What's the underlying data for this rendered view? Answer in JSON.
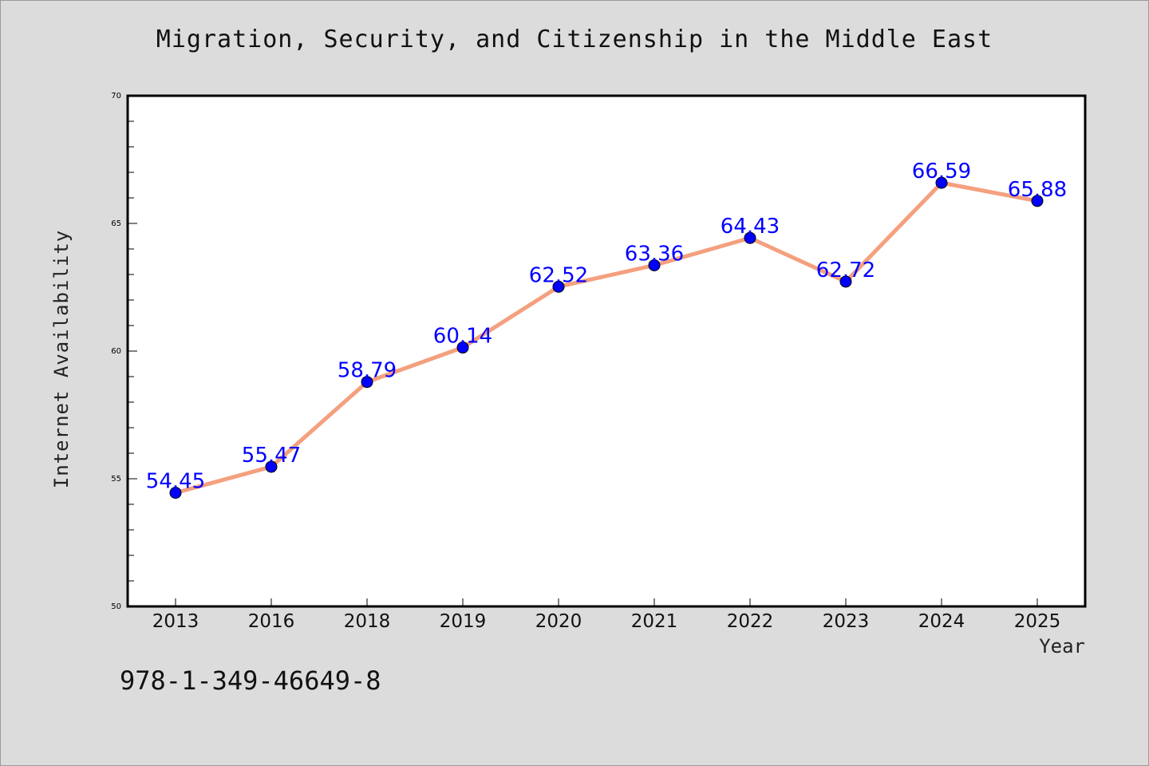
{
  "title": "Migration, Security, and Citizenship in the Middle East",
  "isbn": "978-1-349-46649-8",
  "chart_data": {
    "type": "line",
    "title": "Migration, Security, and Citizenship in the Middle East",
    "xlabel": "Year",
    "ylabel": "Internet Availability",
    "categories": [
      "2013",
      "2016",
      "2018",
      "2019",
      "2020",
      "2021",
      "2022",
      "2023",
      "2024",
      "2025"
    ],
    "series": [
      {
        "values": [
          54.45,
          55.47,
          58.79,
          60.14,
          62.52,
          63.36,
          64.43,
          62.72,
          66.59,
          65.88
        ]
      }
    ],
    "data_labels": [
      "54.45",
      "55.47",
      "58.79",
      "60.14",
      "62.52",
      "63.36",
      "64.43",
      "62.72",
      "66.59",
      "65.88"
    ],
    "ylim": [
      50,
      70
    ],
    "yticks": [
      "50",
      "55",
      "60",
      "65",
      "70"
    ],
    "grid": false,
    "legend": "none",
    "colors": {
      "line": "#f4a07e",
      "marker": "#0000ff",
      "label": "#0000ff",
      "background": "#dcdcdc",
      "plot_background": "#ffffff"
    }
  }
}
